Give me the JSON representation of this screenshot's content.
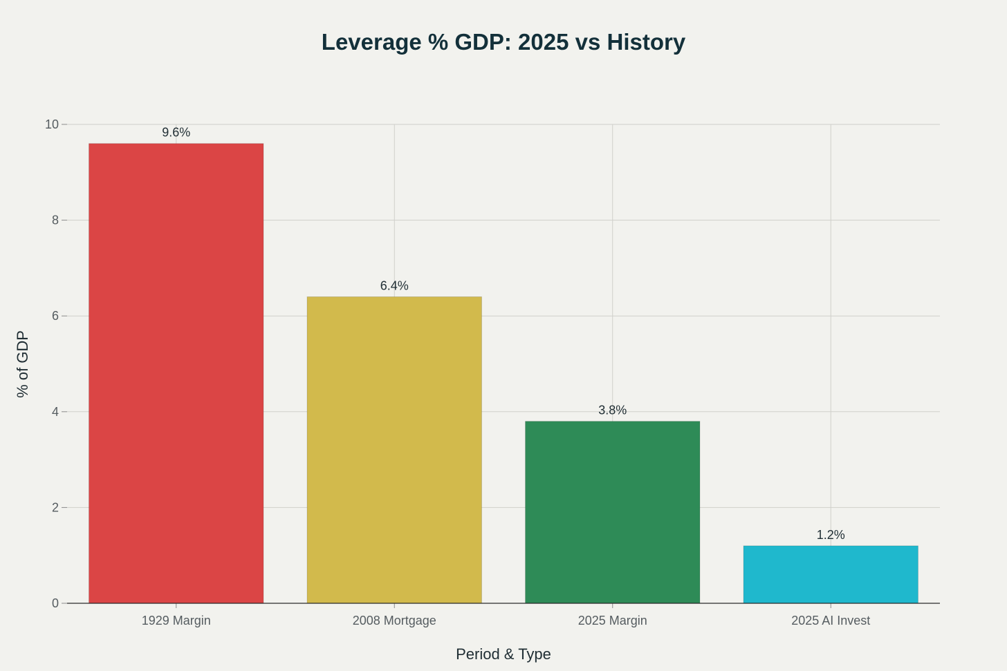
{
  "chart_data": {
    "type": "bar",
    "title": "Leverage % GDP: 2025 vs History",
    "xlabel": "Period & Type",
    "ylabel": "% of GDP",
    "categories": [
      "1929 Margin",
      "2008 Mortgage",
      "2025 Margin",
      "2025 AI Invest"
    ],
    "values": [
      9.6,
      6.4,
      3.8,
      1.2
    ],
    "data_labels": [
      "9.6%",
      "6.4%",
      "3.8%",
      "1.2%"
    ],
    "colors": [
      "#db4545",
      "#d2ba4c",
      "#2e8b57",
      "#1fb8cd"
    ],
    "ylim": [
      0,
      10
    ],
    "yticks": [
      0,
      2,
      4,
      6,
      8,
      10
    ],
    "grid": true
  }
}
